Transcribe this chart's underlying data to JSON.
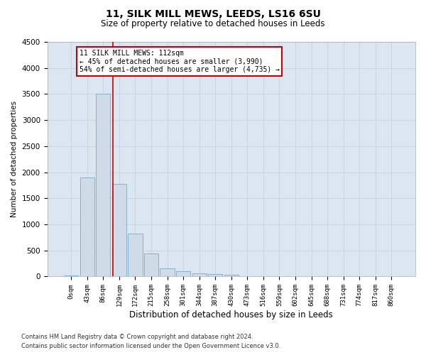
{
  "title1": "11, SILK MILL MEWS, LEEDS, LS16 6SU",
  "title2": "Size of property relative to detached houses in Leeds",
  "xlabel": "Distribution of detached houses by size in Leeds",
  "ylabel": "Number of detached properties",
  "footnote1": "Contains HM Land Registry data © Crown copyright and database right 2024.",
  "footnote2": "Contains public sector information licensed under the Open Government Licence v3.0.",
  "bar_labels": [
    "0sqm",
    "43sqm",
    "86sqm",
    "129sqm",
    "172sqm",
    "215sqm",
    "258sqm",
    "301sqm",
    "344sqm",
    "387sqm",
    "430sqm",
    "473sqm",
    "516sqm",
    "559sqm",
    "602sqm",
    "645sqm",
    "688sqm",
    "731sqm",
    "774sqm",
    "817sqm",
    "860sqm"
  ],
  "bar_values": [
    25,
    1900,
    3500,
    1780,
    830,
    440,
    160,
    95,
    65,
    50,
    30,
    0,
    0,
    0,
    0,
    0,
    0,
    0,
    0,
    0,
    0
  ],
  "bar_color": "#cfdce8",
  "bar_edge_color": "#7baac8",
  "ylim": [
    0,
    4500
  ],
  "yticks": [
    0,
    500,
    1000,
    1500,
    2000,
    2500,
    3000,
    3500,
    4000,
    4500
  ],
  "red_line_x": 2.6,
  "annotation_text_line1": "11 SILK MILL MEWS: 112sqm",
  "annotation_text_line2": "← 45% of detached houses are smaller (3,990)",
  "annotation_text_line3": "54% of semi-detached houses are larger (4,735) →",
  "annotation_box_color": "#ffffff",
  "annotation_box_edge_color": "#cc0000",
  "grid_color": "#c8d4e0",
  "background_color": "#dce6f0"
}
